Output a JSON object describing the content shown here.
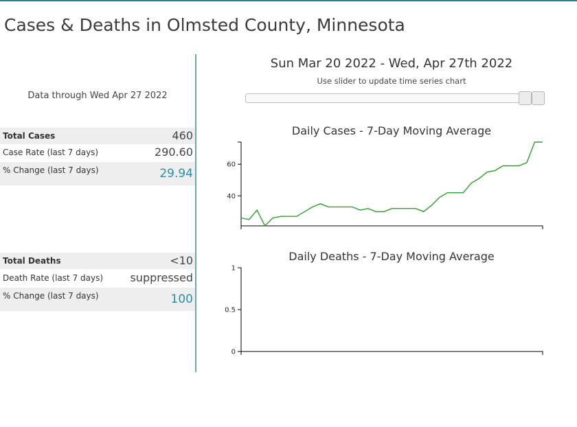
{
  "title": "Cases & Deaths in Olmsted County, Minnesota",
  "left_panel": {
    "data_through": "Data through Wed Apr 27 2022",
    "cases": [
      {
        "label": "Total Cases",
        "value": "460"
      },
      {
        "label": "Case Rate (last 7 days)",
        "value": "290.60"
      },
      {
        "label": "% Change (last 7 days)",
        "value": "29.94"
      }
    ],
    "deaths": [
      {
        "label": "Total Deaths",
        "value": "<10"
      },
      {
        "label": "Death Rate (last 7 days)",
        "value": "suppressed"
      },
      {
        "label": "% Change (last 7 days)",
        "value": "100"
      }
    ]
  },
  "right_panel": {
    "date_range": "Sun Mar 20 2022 - Wed, Apr 27th 2022",
    "slider_hint": "Use slider to update time series chart"
  },
  "colors": {
    "accent": "#2e7f84",
    "line": "#2ca02c",
    "teal_value": "#2a8fa6"
  },
  "chart_data": [
    {
      "type": "line",
      "title": "Daily Cases - 7-Day Moving Average",
      "x": [
        "2022-03-20",
        "2022-03-21",
        "2022-03-22",
        "2022-03-23",
        "2022-03-24",
        "2022-03-25",
        "2022-03-26",
        "2022-03-27",
        "2022-03-28",
        "2022-03-29",
        "2022-03-30",
        "2022-03-31",
        "2022-04-01",
        "2022-04-02",
        "2022-04-03",
        "2022-04-04",
        "2022-04-05",
        "2022-04-06",
        "2022-04-07",
        "2022-04-08",
        "2022-04-09",
        "2022-04-10",
        "2022-04-11",
        "2022-04-12",
        "2022-04-13",
        "2022-04-14",
        "2022-04-15",
        "2022-04-16",
        "2022-04-17",
        "2022-04-18",
        "2022-04-19",
        "2022-04-20",
        "2022-04-21",
        "2022-04-22",
        "2022-04-23",
        "2022-04-24",
        "2022-04-25",
        "2022-04-26",
        "2022-04-27"
      ],
      "values": [
        26,
        25,
        31,
        21,
        26,
        27,
        27,
        27,
        30,
        33,
        35,
        33,
        33,
        33,
        33,
        31,
        32,
        30,
        30,
        32,
        32,
        32,
        32,
        30,
        34,
        39,
        42,
        42,
        42,
        48,
        51,
        55,
        56,
        59,
        59,
        59,
        61,
        74,
        74
      ],
      "yticks": [
        40,
        60
      ],
      "ylim": [
        21,
        74
      ]
    },
    {
      "type": "line",
      "title": "Daily Deaths - 7-Day Moving Average",
      "x": [],
      "values": [],
      "yticks": [
        0,
        0.5,
        1
      ],
      "ylim": [
        0,
        1
      ]
    }
  ]
}
